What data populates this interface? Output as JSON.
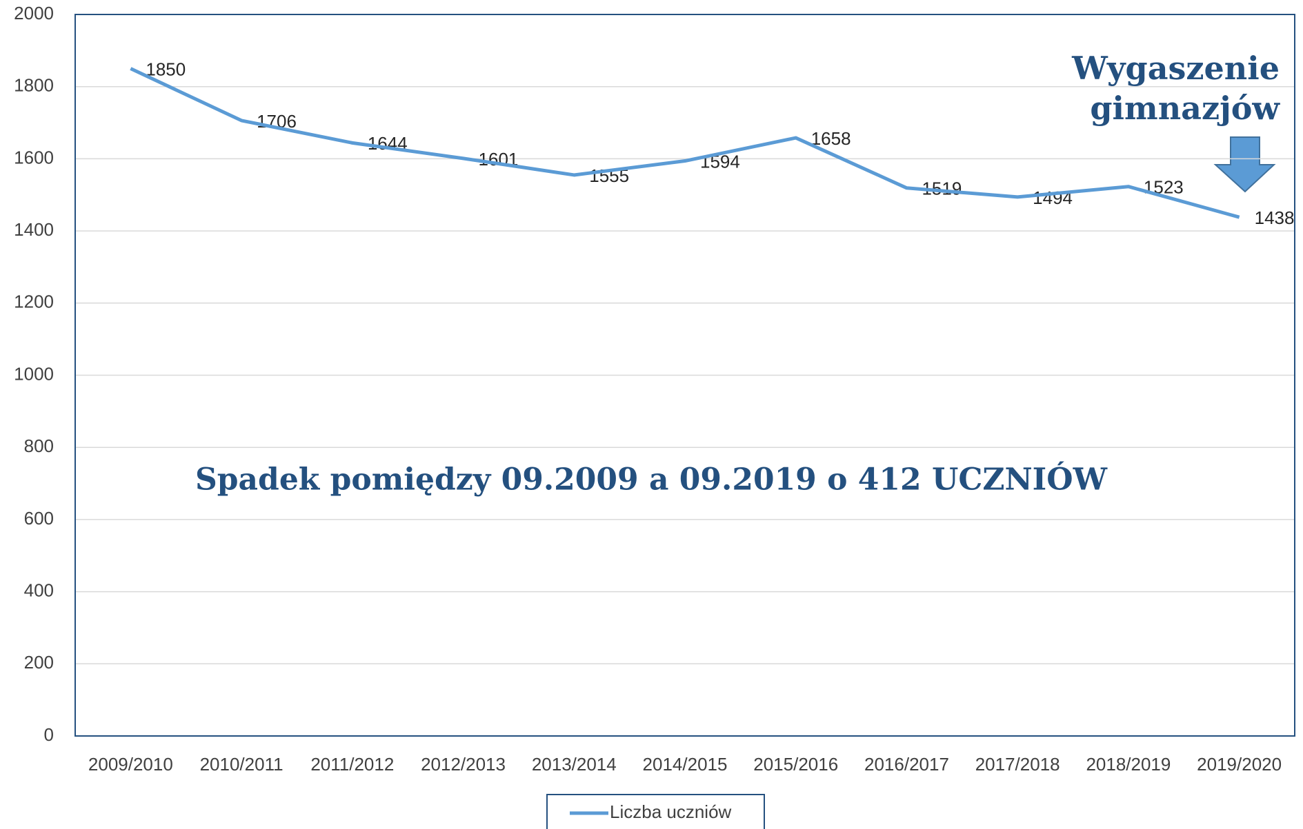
{
  "chart_data": {
    "type": "line",
    "categories": [
      "2009/2010",
      "2010/2011",
      "2011/2012",
      "2012/2013",
      "2013/2014",
      "2014/2015",
      "2015/2016",
      "2016/2017",
      "2017/2018",
      "2018/2019",
      "2019/2020"
    ],
    "series": [
      {
        "name": "Liczba uczniów",
        "color": "#5b9bd5",
        "values": [
          1850,
          1706,
          1644,
          1601,
          1555,
          1594,
          1658,
          1519,
          1494,
          1523,
          1438
        ]
      }
    ],
    "ylim": [
      0,
      2000
    ],
    "yticks": [
      0,
      200,
      400,
      600,
      800,
      1000,
      1200,
      1400,
      1600,
      1800,
      2000
    ],
    "grid": true,
    "legend": "bottom",
    "annotations": [
      "Wygaszenie",
      "gimnazjów",
      "Spadek pomiędzy 09.2009 a 09.2019 o 412 UCZNIÓW"
    ]
  }
}
